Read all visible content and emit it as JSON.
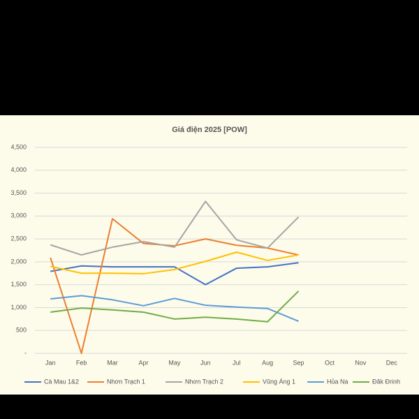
{
  "chart_data": {
    "type": "line",
    "title": "Giá điện 2025 [POW]",
    "categories": [
      "Jan",
      "Feb",
      "Mar",
      "Apr",
      "May",
      "Jun",
      "Jul",
      "Aug",
      "Sep",
      "Oct",
      "Nov",
      "Dec"
    ],
    "series": [
      {
        "name": "Cà Mau 1&2",
        "color": "#4472c4",
        "values": [
          1790,
          1910,
          1890,
          1890,
          1890,
          1500,
          1860,
          1890,
          1980,
          null,
          null,
          null
        ]
      },
      {
        "name": "Nhơn Trạch 1",
        "color": "#ed7d31",
        "values": [
          2090,
          0,
          2940,
          2400,
          2350,
          2500,
          2360,
          2300,
          2150,
          null,
          null,
          null
        ]
      },
      {
        "name": "Nhơn Trạch 2",
        "color": "#a5a5a5",
        "values": [
          2370,
          2150,
          2320,
          2440,
          2320,
          3320,
          2480,
          2300,
          2980,
          null,
          null,
          null
        ]
      },
      {
        "name": "Vũng Áng 1",
        "color": "#ffc000",
        "values": [
          1900,
          1750,
          1750,
          1740,
          1830,
          2010,
          2210,
          2030,
          2150,
          null,
          null,
          null
        ]
      },
      {
        "name": "Hủa Na",
        "color": "#5b9bd5",
        "values": [
          1190,
          1260,
          1170,
          1040,
          1200,
          1050,
          1010,
          980,
          700,
          null,
          null,
          null
        ]
      },
      {
        "name": "Đăk Đrinh",
        "color": "#70ad47",
        "values": [
          900,
          990,
          950,
          900,
          750,
          790,
          750,
          690,
          1360,
          null,
          null,
          null
        ]
      }
    ],
    "ylim": [
      0,
      4500
    ],
    "yticks": [
      {
        "value": 0,
        "label": "-"
      },
      500,
      {
        "value": 1000,
        "label": "1,000"
      },
      {
        "value": 1500,
        "label": "1,500"
      },
      {
        "value": 2000,
        "label": "2,000"
      },
      {
        "value": 2500,
        "label": "2,500"
      },
      {
        "value": 3000,
        "label": "3,000"
      },
      {
        "value": 3500,
        "label": "3,500"
      },
      {
        "value": 4000,
        "label": "4,000"
      },
      {
        "value": 4500,
        "label": "4,500"
      }
    ],
    "grid": true,
    "legend": "bottom"
  }
}
